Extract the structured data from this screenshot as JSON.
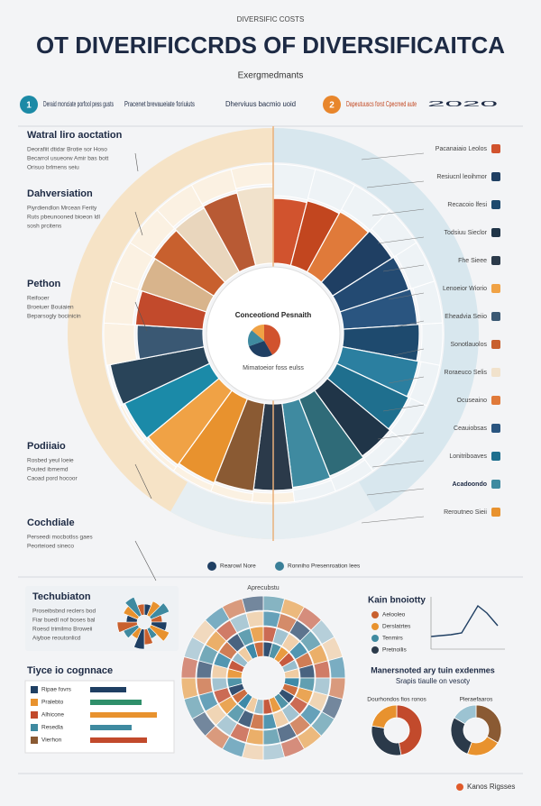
{
  "header": {
    "kicker": "DIVERSIFIC COSTS",
    "title": "OT DIVERIFICCRDS OF DIVERSIFICAITCA",
    "subtitle": "Exergmedmants"
  },
  "steps": [
    {
      "badge": "1",
      "text": "Deraid monciate porfool pess gusts"
    },
    {
      "text": "Pracenet brevaueiate foriuiuts"
    },
    {
      "text": "Dherviuus bacmio uoid"
    },
    {
      "badge": "2",
      "text": "Dapeutuuscs forst Cpecmed aute"
    },
    {
      "text": "2020"
    }
  ],
  "left_sections": [
    {
      "title": "Watral liro aoctation",
      "body": [
        "Deorafiit dtidar Brotie sor Hoso",
        "Becarrol usueorw Amir bas bott",
        "Orisuo brlmens seiu"
      ]
    },
    {
      "title": "Dahversiation",
      "body": [
        "Piyrdiendlon Mrcean Ferity",
        "Ruts pbeunooned bioeon ldl",
        "sosh prcitens"
      ]
    },
    {
      "title": "Pethon",
      "body": [
        "Reifooer",
        "Broeiuer Bouiaien",
        "Beparsogly bocinicin"
      ]
    },
    {
      "title": "Podiiaio",
      "body": [
        "Rosbed yeul loeie",
        "Pouted ibmemd",
        "Caoad pord hocoor"
      ]
    },
    {
      "title": "Cochdiale",
      "body": [
        "Perseedi mocbotlss gaes",
        "Peorteioed sineco"
      ]
    }
  ],
  "right_labels": [
    "Pacanaiaio Leolos",
    "Resiucnl leoihmor",
    "Recacoio lfesi",
    "Todsiuu Sieclor",
    "Fhe Sieee",
    "Lenoeior Wiorio",
    "Eheadvia Seiio",
    "Sonotlauolos",
    "Roraeuco Selis",
    "Ocuseaino",
    "Ceauiobsas",
    "Lonitriboaves",
    "Acadoondo",
    "Reroutneo Sieii"
  ],
  "center": {
    "title": "Conceotiond Pesnaith",
    "note": "Mimatoeior foss eulss"
  },
  "legend": [
    "Rearowl Nore",
    "Ronniho Presenroation lees"
  ],
  "bottom_left": {
    "title": "Techubiaton",
    "body": [
      "Proseibsbnd reclers bod",
      "Fiar buedl nof boses bal",
      "Roesd trimilmo Broweii",
      "Aiyboe reoutonlicd"
    ],
    "title2": "Tiyce io cognnace",
    "rows": [
      "Ripae fovrs",
      "Pralebto",
      "Alhicone",
      "Resedla",
      "Vierhon"
    ]
  },
  "bottom_center": {
    "title": "Aprecubstu"
  },
  "bottom_right": {
    "title": "Kain bnoiotty",
    "legend": [
      "Aelooleo",
      "Derslatrtes",
      "Tenmirs",
      "Pretnoilis"
    ],
    "title2": "Manersnoted ary tuin exdenmes",
    "subtitle2": "Srapis tiaulle on vesoty",
    "donuts": [
      "Dourhondos fios ronos",
      "Pleraefaaros"
    ]
  },
  "footer": "Kanos Rigsses"
}
